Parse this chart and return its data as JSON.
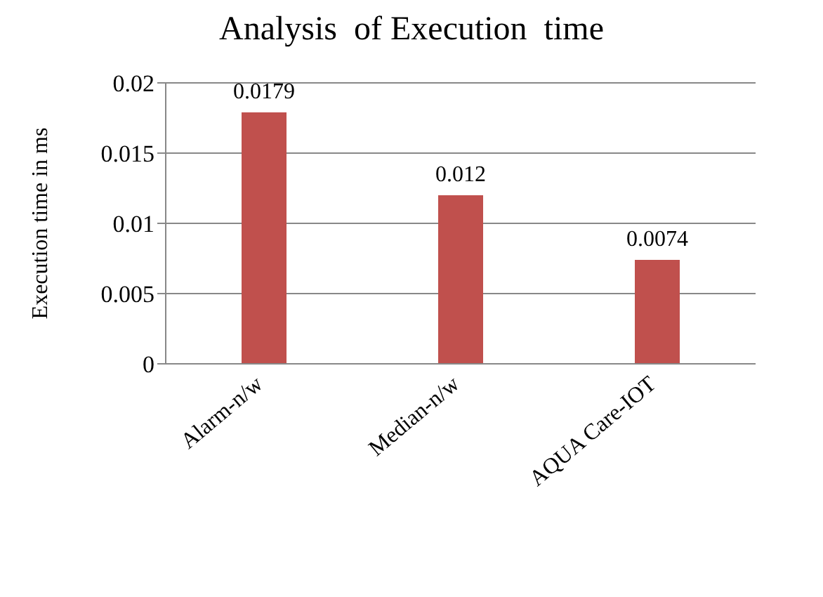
{
  "chart_data": {
    "type": "bar",
    "title": "Analysis  of Execution  time",
    "ylabel": "Execution time in ms",
    "categories": [
      "Alarm-n/w",
      "Median-n/w",
      "AQUA Care-IOT"
    ],
    "values": [
      0.0179,
      0.012,
      0.0074
    ],
    "color": "#c0504d",
    "ylim": [
      0,
      0.02
    ],
    "yticks": [
      0,
      0.005,
      0.01,
      0.015,
      0.02
    ],
    "grid": "y",
    "data_labels": true
  }
}
